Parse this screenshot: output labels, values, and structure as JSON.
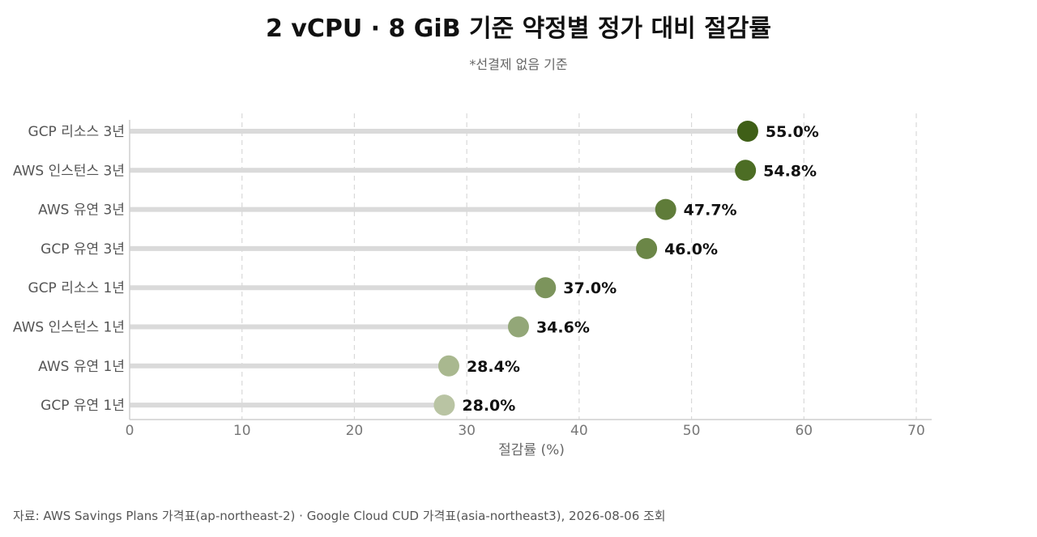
{
  "title": "2 vCPU · 8 GiB 기준 약정별 정가 대비 절감률",
  "subtitle": "*선결제 없음 기준",
  "source": "자료: AWS Savings Plans 가격표(ap-northeast-2) · Google Cloud CUD 가격표(asia-northeast3), 2026-08-06 조회",
  "chart_data": {
    "type": "lollipop",
    "orientation": "horizontal",
    "categories": [
      "GCP 리소스 3년",
      "AWS 인스턴스 3년",
      "AWS 유연 3년",
      "GCP 유연 3년",
      "GCP 리소스 1년",
      "AWS 인스턴스 1년",
      "AWS 유연 1년",
      "GCP 유연 1년"
    ],
    "values": [
      55.0,
      54.8,
      47.7,
      46.0,
      37.0,
      34.6,
      28.4,
      28.0
    ],
    "value_labels": [
      "55.0%",
      "54.8%",
      "47.7%",
      "46.0%",
      "37.0%",
      "34.6%",
      "28.4%",
      "28.0%"
    ],
    "colors": [
      "#3f5f17",
      "#4c6d24",
      "#5f7c39",
      "#6b8647",
      "#7c945c",
      "#93a778",
      "#a9b88f",
      "#b9c4a3"
    ],
    "xlabel": "절감률 (%)",
    "ylabel": "",
    "xlim": [
      0,
      70
    ],
    "xticks": [
      0,
      10,
      20,
      30,
      40,
      50,
      60,
      70
    ],
    "grid": "vertical-dashed",
    "legend": "none"
  }
}
